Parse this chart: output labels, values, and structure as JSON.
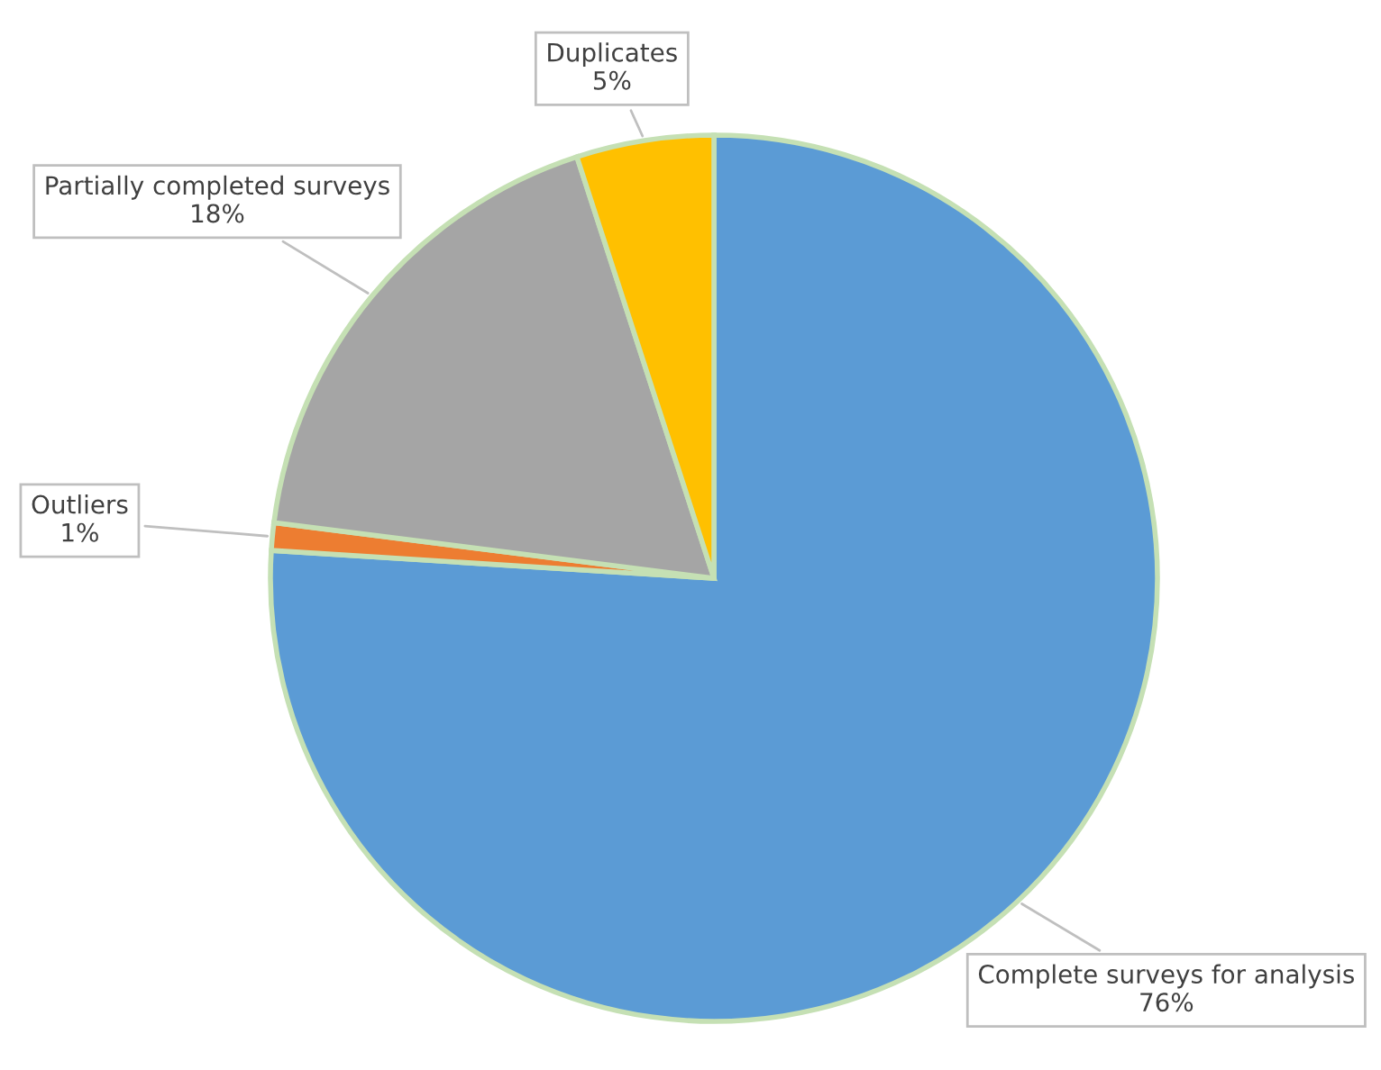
{
  "chart_data": {
    "type": "pie",
    "categories": [
      "Complete surveys for analysis",
      "Outliers",
      "Partially completed surveys",
      "Duplicates"
    ],
    "values": [
      76,
      1,
      18,
      5
    ],
    "colors": [
      "#5b9bd5",
      "#ed7d31",
      "#a5a5a5",
      "#ffc000"
    ],
    "value_labels": [
      "76%",
      "1%",
      "18%",
      "5%"
    ],
    "legend": false
  }
}
